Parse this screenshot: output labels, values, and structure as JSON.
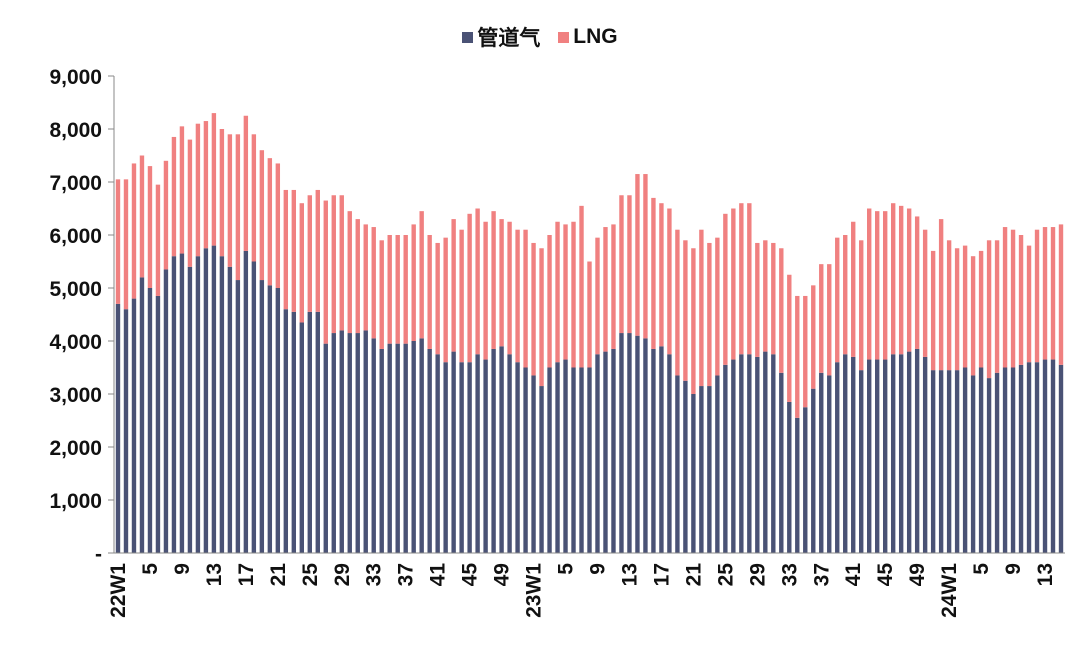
{
  "chart_data": {
    "type": "bar",
    "stacked": true,
    "title": "",
    "xlabel": "",
    "ylabel": "",
    "ylim": [
      0,
      9000
    ],
    "y_ticks": [
      "-",
      "1,000",
      "2,000",
      "3,000",
      "4,000",
      "5,000",
      "6,000",
      "7,000",
      "8,000",
      "9,000"
    ],
    "x_tick_labels": [
      "22W1",
      "5",
      "9",
      "13",
      "17",
      "21",
      "25",
      "29",
      "33",
      "37",
      "41",
      "45",
      "49",
      "23W1",
      "5",
      "9",
      "13",
      "17",
      "21",
      "25",
      "29",
      "33",
      "37",
      "41",
      "45",
      "49",
      "24W1",
      "5",
      "9",
      "13"
    ],
    "legend_position": "top-center",
    "grid": false,
    "series": [
      {
        "name": "管道气",
        "color": "#4a5275",
        "values": [
          4700,
          4600,
          4800,
          5200,
          5000,
          4850,
          5350,
          5600,
          5650,
          5400,
          5600,
          5750,
          5800,
          5600,
          5400,
          5150,
          5700,
          5500,
          5150,
          5050,
          5000,
          4600,
          4550,
          4350,
          4550,
          4550,
          3950,
          4150,
          4200,
          4150,
          4150,
          4200,
          4050,
          3850,
          3950,
          3950,
          3950,
          4000,
          4050,
          3850,
          3750,
          3600,
          3800,
          3600,
          3600,
          3750,
          3650,
          3850,
          3900,
          3750,
          3600,
          3500,
          3350,
          3150,
          3500,
          3600,
          3650,
          3500,
          3500,
          3500,
          3750,
          3800,
          3850,
          4150,
          4150,
          4100,
          4050,
          3850,
          3900,
          3750,
          3350,
          3250,
          3000,
          3150,
          3150,
          3350,
          3550,
          3650,
          3750,
          3750,
          3700,
          3800,
          3750,
          3400,
          2850,
          2550,
          2750,
          3100,
          3400,
          3350,
          3600,
          3750,
          3700,
          3450,
          3650,
          3650,
          3650,
          3750,
          3750,
          3800,
          3850,
          3700,
          3450,
          3450,
          3450,
          3450,
          3500,
          3350,
          3500,
          3300,
          3400,
          3500,
          3500,
          3550,
          3600,
          3600,
          3650,
          3650,
          3550
        ]
      },
      {
        "name": "LNG",
        "color": "#f08080",
        "values": [
          2350,
          2450,
          2550,
          2300,
          2300,
          2100,
          2050,
          2250,
          2400,
          2400,
          2500,
          2400,
          2500,
          2400,
          2500,
          2750,
          2550,
          2400,
          2450,
          2400,
          2350,
          2250,
          2300,
          2250,
          2200,
          2300,
          2700,
          2600,
          2550,
          2300,
          2150,
          2000,
          2100,
          2050,
          2050,
          2050,
          2050,
          2200,
          2400,
          2150,
          2100,
          2350,
          2500,
          2500,
          2800,
          2750,
          2600,
          2600,
          2400,
          2500,
          2500,
          2600,
          2500,
          2600,
          2500,
          2650,
          2550,
          2750,
          3050,
          2000,
          2200,
          2350,
          2350,
          2600,
          2600,
          3050,
          3100,
          2850,
          2700,
          2750,
          2750,
          2650,
          2750,
          2950,
          2700,
          2600,
          2850,
          2850,
          2850,
          2850,
          2150,
          2100,
          2100,
          2350,
          2400,
          2300,
          2100,
          1950,
          2050,
          2100,
          2350,
          2250,
          2550,
          2450,
          2850,
          2800,
          2800,
          2850,
          2800,
          2700,
          2500,
          2400,
          2250,
          2850,
          2450,
          2300,
          2300,
          2250,
          2200,
          2600,
          2500,
          2650,
          2600,
          2450,
          2200,
          2500,
          2500,
          2500,
          2650
        ]
      }
    ]
  }
}
